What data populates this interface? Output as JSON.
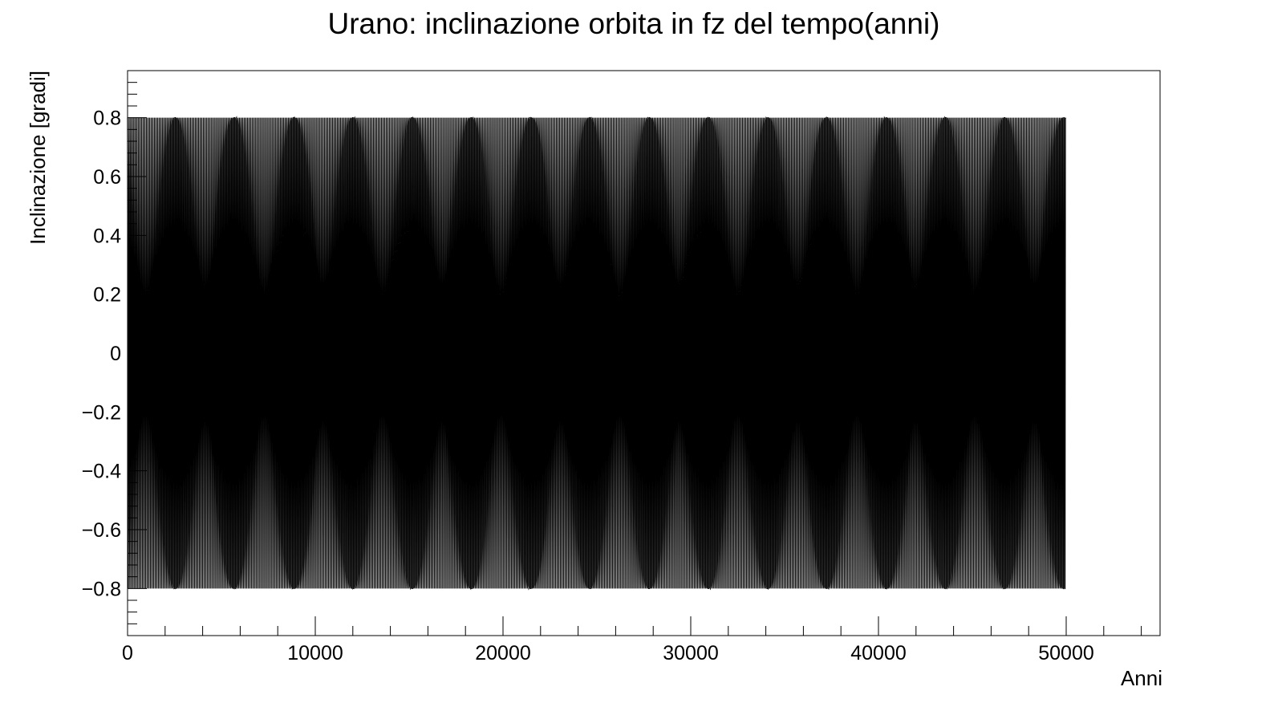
{
  "chart_data": {
    "type": "line",
    "title": "Urano: inclinazione orbita in fz del tempo(anni)",
    "xlabel": "Anni",
    "ylabel": "Inclinazione [gradi]",
    "xlim": [
      0,
      55000
    ],
    "ylim": [
      -0.96,
      0.96
    ],
    "x_ticks": [
      0,
      10000,
      20000,
      30000,
      40000,
      50000
    ],
    "x_tick_labels": [
      "0",
      "10000",
      "20000",
      "30000",
      "40000",
      "50000"
    ],
    "y_ticks": [
      0.8,
      0.6,
      0.4,
      0.2,
      0,
      -0.2,
      -0.4,
      -0.6,
      -0.8
    ],
    "y_tick_labels": [
      "0.8",
      "0.6",
      "0.4",
      "0.2",
      "0",
      "−0.2",
      "−0.4",
      "−0.6",
      "−0.8"
    ],
    "grid": false,
    "legend": "none",
    "line_color": "#000000",
    "series": [
      {
        "x_start": 0,
        "x_end": 50000,
        "amplitude": 0.8,
        "carrier_period": 84,
        "beat_period": 3156,
        "first_beat_peak": 2540
      }
    ]
  }
}
